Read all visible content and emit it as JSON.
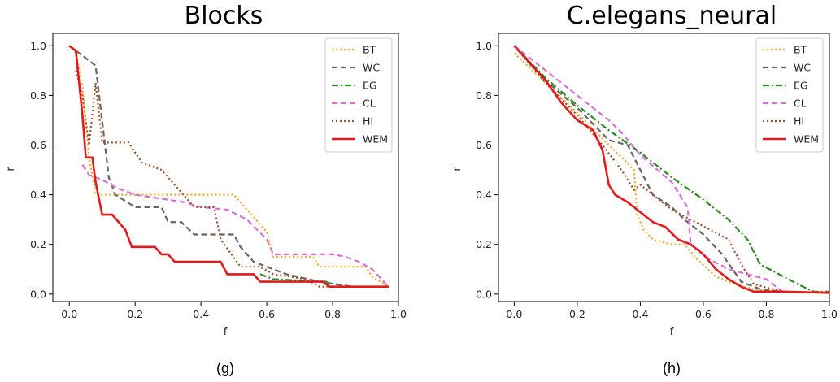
{
  "chart_data": [
    {
      "type": "line",
      "title": "Blocks",
      "xlabel": "f",
      "ylabel": "r",
      "caption": "(g)",
      "xlim": [
        -0.05,
        1.0
      ],
      "ylim": [
        -0.03,
        1.05
      ],
      "xticks": [
        "0.0",
        "0.2",
        "0.4",
        "0.6",
        "0.8",
        "1.0"
      ],
      "yticks": [
        "0.0",
        "0.2",
        "0.4",
        "0.6",
        "0.8",
        "1.0"
      ],
      "legend_position": "top-right",
      "grid": false,
      "series": [
        {
          "name": "BT",
          "color": "#f5a623",
          "dash": "dotted",
          "x": [
            0.0,
            0.02,
            0.04,
            0.06,
            0.08,
            0.1,
            0.5,
            0.52,
            0.6,
            0.62,
            0.74,
            0.76,
            0.9,
            0.92,
            0.97
          ],
          "y": [
            1.0,
            0.97,
            0.84,
            0.55,
            0.4,
            0.4,
            0.4,
            0.37,
            0.25,
            0.15,
            0.15,
            0.11,
            0.11,
            0.07,
            0.03
          ]
        },
        {
          "name": "WC",
          "color": "#666666",
          "dash": "dashed",
          "x": [
            0.0,
            0.02,
            0.08,
            0.12,
            0.14,
            0.2,
            0.28,
            0.3,
            0.34,
            0.38,
            0.42,
            0.5,
            0.52,
            0.56,
            0.6,
            0.66,
            0.76,
            0.86,
            0.97
          ],
          "y": [
            1.0,
            0.98,
            0.92,
            0.47,
            0.4,
            0.35,
            0.35,
            0.29,
            0.29,
            0.24,
            0.24,
            0.24,
            0.19,
            0.13,
            0.11,
            0.08,
            0.05,
            0.03,
            0.03
          ]
        },
        {
          "name": "EG",
          "color": "#2e8b22",
          "dash": "dashdot",
          "x": [
            0.58,
            0.62,
            0.78,
            0.8,
            0.97
          ],
          "y": [
            0.08,
            0.06,
            0.05,
            0.03,
            0.03
          ]
        },
        {
          "name": "CL",
          "color": "#da70d6",
          "dash": "dashed",
          "x": [
            0.04,
            0.06,
            0.1,
            0.14,
            0.2,
            0.3,
            0.35,
            0.4,
            0.48,
            0.54,
            0.6,
            0.62,
            0.8,
            0.84,
            0.88,
            0.92,
            0.97
          ],
          "y": [
            0.52,
            0.48,
            0.46,
            0.43,
            0.4,
            0.38,
            0.37,
            0.35,
            0.34,
            0.3,
            0.22,
            0.16,
            0.16,
            0.15,
            0.13,
            0.1,
            0.03
          ]
        },
        {
          "name": "HI",
          "color": "#a0522d",
          "dash": "dotted",
          "x": [
            0.02,
            0.04,
            0.06,
            0.08,
            0.1,
            0.18,
            0.22,
            0.28,
            0.32,
            0.38,
            0.44,
            0.46,
            0.52,
            0.58,
            0.62,
            0.72,
            0.76,
            0.8,
            0.97
          ],
          "y": [
            0.9,
            0.8,
            0.6,
            0.85,
            0.61,
            0.61,
            0.53,
            0.5,
            0.44,
            0.35,
            0.35,
            0.22,
            0.11,
            0.11,
            0.08,
            0.06,
            0.03,
            0.03,
            0.03
          ]
        },
        {
          "name": "WEM",
          "color": "#e31a1c",
          "dash": "solid",
          "x": [
            0.0,
            0.02,
            0.04,
            0.05,
            0.07,
            0.08,
            0.1,
            0.13,
            0.17,
            0.19,
            0.21,
            0.26,
            0.28,
            0.3,
            0.32,
            0.34,
            0.46,
            0.48,
            0.56,
            0.58,
            0.62,
            0.77,
            0.79,
            0.97
          ],
          "y": [
            1.0,
            0.98,
            0.72,
            0.55,
            0.55,
            0.45,
            0.32,
            0.32,
            0.26,
            0.19,
            0.19,
            0.19,
            0.16,
            0.16,
            0.13,
            0.13,
            0.13,
            0.08,
            0.08,
            0.05,
            0.05,
            0.05,
            0.03,
            0.03
          ]
        }
      ]
    },
    {
      "type": "line",
      "title": "C.elegans_neural",
      "xlabel": "f",
      "ylabel": "r",
      "caption": "(h)",
      "xlim": [
        -0.05,
        1.0
      ],
      "ylim": [
        -0.03,
        1.05
      ],
      "xticks": [
        "0.0",
        "0.2",
        "0.4",
        "0.6",
        "0.8",
        "1.0"
      ],
      "yticks": [
        "0.0",
        "0.2",
        "0.4",
        "0.6",
        "0.8",
        "1.0"
      ],
      "legend_position": "top-right",
      "grid": false,
      "series": [
        {
          "name": "BT",
          "color": "#f5a623",
          "dash": "dotted",
          "x": [
            0.0,
            0.1,
            0.2,
            0.3,
            0.35,
            0.38,
            0.39,
            0.41,
            0.44,
            0.5,
            0.54,
            0.58,
            0.64,
            0.7,
            0.76,
            0.85
          ],
          "y": [
            0.97,
            0.85,
            0.73,
            0.6,
            0.54,
            0.5,
            0.32,
            0.26,
            0.22,
            0.2,
            0.2,
            0.14,
            0.07,
            0.04,
            0.02,
            0.01
          ]
        },
        {
          "name": "WC",
          "color": "#666666",
          "dash": "dashed",
          "x": [
            0.0,
            0.1,
            0.2,
            0.3,
            0.36,
            0.4,
            0.44,
            0.5,
            0.54,
            0.6,
            0.66,
            0.72,
            0.78,
            0.85
          ],
          "y": [
            1.0,
            0.86,
            0.75,
            0.62,
            0.6,
            0.5,
            0.4,
            0.35,
            0.3,
            0.24,
            0.16,
            0.05,
            0.02,
            0.01
          ]
        },
        {
          "name": "EG",
          "color": "#2e8b22",
          "dash": "dashdot",
          "x": [
            0.0,
            0.1,
            0.2,
            0.3,
            0.4,
            0.5,
            0.6,
            0.68,
            0.74,
            0.78,
            0.84,
            0.9,
            0.95,
            1.0
          ],
          "y": [
            1.0,
            0.87,
            0.76,
            0.66,
            0.57,
            0.47,
            0.38,
            0.3,
            0.22,
            0.12,
            0.08,
            0.04,
            0.01,
            0.01
          ]
        },
        {
          "name": "CL",
          "color": "#da70d6",
          "dash": "dashed",
          "x": [
            0.0,
            0.1,
            0.2,
            0.3,
            0.34,
            0.4,
            0.5,
            0.55,
            0.56,
            0.62,
            0.68,
            0.74,
            0.8,
            0.85
          ],
          "y": [
            1.0,
            0.9,
            0.8,
            0.7,
            0.65,
            0.56,
            0.45,
            0.35,
            0.2,
            0.14,
            0.1,
            0.08,
            0.06,
            0.01
          ]
        },
        {
          "name": "HI",
          "color": "#a0522d",
          "dash": "dotted",
          "x": [
            0.0,
            0.1,
            0.2,
            0.28,
            0.34,
            0.38,
            0.4,
            0.44,
            0.5,
            0.56,
            0.62,
            0.68,
            0.72,
            0.76,
            0.85
          ],
          "y": [
            1.0,
            0.85,
            0.72,
            0.6,
            0.5,
            0.42,
            0.44,
            0.4,
            0.34,
            0.3,
            0.26,
            0.22,
            0.12,
            0.04,
            0.01
          ]
        },
        {
          "name": "WEM",
          "color": "#e31a1c",
          "dash": "solid",
          "x": [
            0.0,
            0.05,
            0.1,
            0.15,
            0.2,
            0.25,
            0.28,
            0.3,
            0.32,
            0.36,
            0.4,
            0.44,
            0.48,
            0.52,
            0.56,
            0.6,
            0.64,
            0.68,
            0.72,
            0.76,
            0.85,
            1.0
          ],
          "y": [
            1.0,
            0.93,
            0.86,
            0.77,
            0.7,
            0.66,
            0.58,
            0.44,
            0.4,
            0.37,
            0.33,
            0.29,
            0.27,
            0.22,
            0.2,
            0.16,
            0.1,
            0.06,
            0.03,
            0.01,
            0.01,
            0.005
          ]
        }
      ]
    }
  ]
}
